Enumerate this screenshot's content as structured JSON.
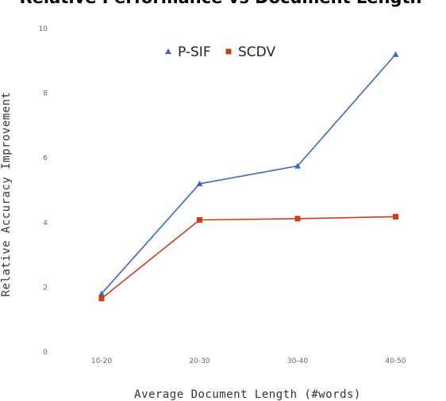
{
  "colors": {
    "series_0": "#3a68c2",
    "series_1": "#d03a1c"
  },
  "chart_data": {
    "type": "line",
    "title": "Relative Performance vs Document Length",
    "xlabel": "Average Document Length (#words)",
    "ylabel": "Relative Accuracy Improvement",
    "categories": [
      "10-20",
      "20-30",
      "30-40",
      "40-50"
    ],
    "ylim": [
      0,
      10
    ],
    "yticks": [
      "0",
      "2",
      "4",
      "6",
      "8",
      "10"
    ],
    "grid": false,
    "legend_position": "top-center",
    "series": [
      {
        "name": "P-SIF",
        "marker": "triangle",
        "values": [
          1.8,
          5.2,
          5.75,
          9.2
        ]
      },
      {
        "name": "SCDV",
        "marker": "square",
        "values": [
          1.65,
          4.08,
          4.12,
          4.18
        ]
      }
    ]
  }
}
